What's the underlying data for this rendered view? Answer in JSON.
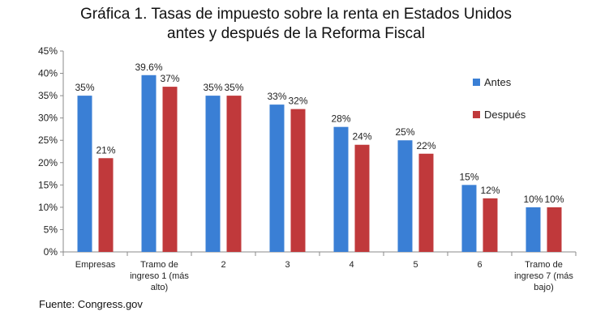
{
  "title_line1": "Gráfica 1. Tasas de impuesto sobre la renta en Estados Unidos",
  "title_line2": "antes y después de la Reforma Fiscal",
  "source": "Fuente: Congress.gov",
  "chart_data": {
    "type": "bar",
    "title": "Gráfica 1. Tasas de impuesto sobre la renta en Estados Unidos antes y después de la Reforma Fiscal",
    "categories": [
      [
        "Empresas"
      ],
      [
        "Tramo de",
        "ingreso 1 (más",
        "alto)"
      ],
      [
        "2"
      ],
      [
        "3"
      ],
      [
        "4"
      ],
      [
        "5"
      ],
      [
        "6"
      ],
      [
        "Tramo de",
        "ingreso 7 (más",
        "bajo)"
      ]
    ],
    "series": [
      {
        "name": "Antes",
        "color": "#3A7FD5",
        "values": [
          35,
          39.6,
          35,
          33,
          28,
          25,
          15,
          10
        ],
        "labels": [
          "35%",
          "39.6%",
          "35%",
          "33%",
          "28%",
          "25%",
          "15%",
          "10%"
        ]
      },
      {
        "name": "Después",
        "color": "#C0393B",
        "values": [
          21,
          37,
          35,
          32,
          24,
          22,
          12,
          10
        ],
        "labels": [
          "21%",
          "37%",
          "35%",
          "32%",
          "24%",
          "22%",
          "12%",
          "10%"
        ]
      }
    ],
    "ylim": [
      0,
      45
    ],
    "yticks": [
      "0%",
      "5%",
      "10%",
      "15%",
      "20%",
      "25%",
      "30%",
      "35%",
      "40%",
      "45%"
    ],
    "grid": false,
    "legend_position": "right"
  }
}
